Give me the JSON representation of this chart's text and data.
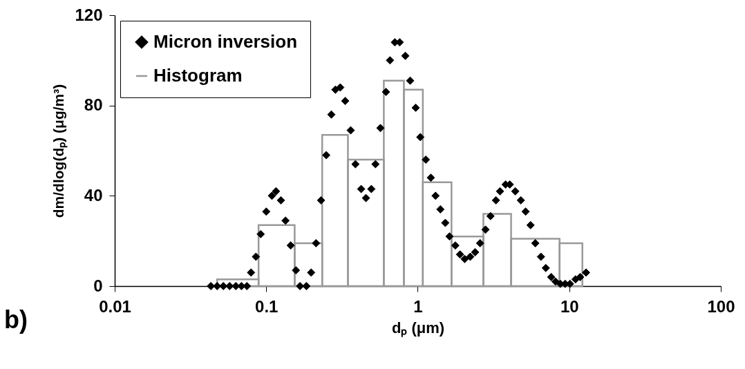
{
  "chart_data": {
    "type": "scatter",
    "xlabel": "dₚ (μm)",
    "ylabel": "dm/dlog(dₚ) (μg/m³)",
    "annotations": [
      "b)"
    ],
    "log": "x",
    "legend": "top left",
    "marker": "diamond",
    "xlim": [
      0.01,
      100
    ],
    "xticks": [
      0.01,
      0.1,
      1,
      10,
      100
    ],
    "ylim": [
      0,
      120
    ],
    "yticks": [
      0,
      40,
      80,
      120
    ],
    "series": [
      {
        "name": "Micron inversion",
        "color": "#000000",
        "x": [
          0.0431,
          0.0474,
          0.0521,
          0.0573,
          0.063,
          0.0686,
          0.0745,
          0.0794,
          0.0855,
          0.0919,
          0.1,
          0.109,
          0.116,
          0.125,
          0.134,
          0.145,
          0.157,
          0.167,
          0.184,
          0.198,
          0.213,
          0.23,
          0.249,
          0.269,
          0.286,
          0.308,
          0.332,
          0.361,
          0.388,
          0.423,
          0.455,
          0.494,
          0.526,
          0.567,
          0.617,
          0.656,
          0.706,
          0.76,
          0.828,
          0.891,
          0.969,
          1.04,
          1.13,
          1.22,
          1.31,
          1.41,
          1.52,
          1.62,
          1.77,
          1.9,
          2.04,
          2.22,
          2.39,
          2.58,
          2.8,
          3.02,
          3.28,
          3.49,
          3.8,
          4.05,
          4.4,
          4.79,
          5.15,
          5.55,
          5.97,
          6.5,
          7.0,
          7.6,
          8.11,
          8.73,
          9.39,
          10.1,
          11.0,
          11.8,
          12.9
        ],
        "values": [
          0,
          0,
          0,
          0,
          0,
          0,
          0,
          6,
          13,
          23,
          33,
          40,
          42,
          38,
          29,
          18,
          7,
          0,
          0,
          6,
          19,
          38,
          58,
          76,
          87,
          88,
          82,
          69,
          54,
          43,
          39,
          43,
          54,
          70,
          86,
          100,
          108,
          108,
          102,
          91,
          79,
          66,
          56,
          48,
          40,
          34,
          28,
          22,
          18,
          14,
          12,
          13,
          15,
          19,
          25,
          31,
          38,
          42,
          45,
          45,
          42,
          38,
          33,
          27,
          19,
          13,
          8,
          4,
          2,
          1,
          1,
          1,
          3,
          4,
          6
        ]
      },
      {
        "name": "Histogram",
        "type": "histogram",
        "color": "#999999",
        "bins": [
          0.0474,
          0.089,
          0.154,
          0.234,
          0.346,
          0.597,
          0.81,
          1.08,
          1.67,
          2.71,
          4.13,
          8.63,
          12.2
        ],
        "values": [
          3,
          27,
          19,
          67,
          56,
          91,
          87,
          46,
          22,
          32,
          21,
          19
        ]
      }
    ]
  }
}
